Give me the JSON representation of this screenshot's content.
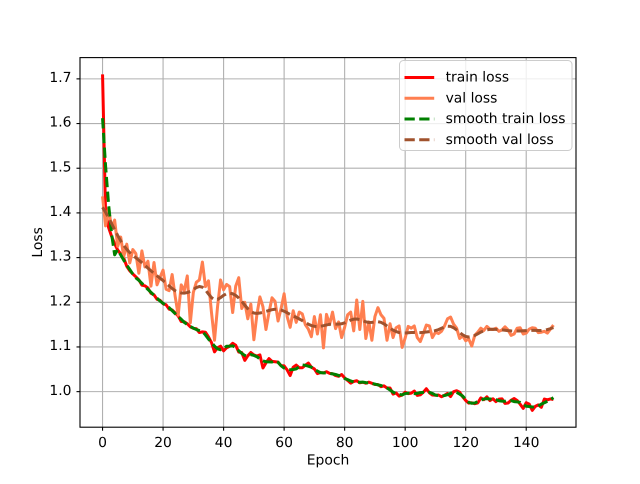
{
  "window": {
    "title": "",
    "background": "#ffffff"
  },
  "chart_data": {
    "type": "line",
    "title": "",
    "xlabel": "Epoch",
    "ylabel": "Loss",
    "x_start": 0,
    "n_points": 150,
    "xlim": [
      -7.45,
      156.45
    ],
    "ylim": [
      0.9204,
      1.7476
    ],
    "xticks": [
      0,
      20,
      40,
      60,
      80,
      100,
      120,
      140
    ],
    "xtick_labels": [
      "0",
      "20",
      "40",
      "60",
      "80",
      "100",
      "120",
      "140"
    ],
    "yticks": [
      1.0,
      1.1,
      1.2,
      1.3,
      1.4,
      1.5,
      1.6,
      1.7
    ],
    "ytick_labels": [
      "1.0",
      "1.1",
      "1.2",
      "1.3",
      "1.4",
      "1.5",
      "1.6",
      "1.7"
    ],
    "grid": true,
    "grid_color": "#b0b0b0",
    "legend_position": "upper right",
    "series": [
      {
        "name": "train loss",
        "color": "#ff0000",
        "style": "solid",
        "values": [
          1.71,
          1.4,
          1.3672,
          1.3475,
          1.3307,
          1.3172,
          1.3082,
          1.2988,
          1.2806,
          1.2703,
          1.2634,
          1.257,
          1.2503,
          1.2384,
          1.2369,
          1.2319,
          1.2202,
          1.2167,
          1.2067,
          1.2044,
          1.1968,
          1.1943,
          1.1845,
          1.1828,
          1.1764,
          1.1695,
          1.157,
          1.1565,
          1.1519,
          1.145,
          1.1417,
          1.1407,
          1.1323,
          1.1337,
          1.133,
          1.1227,
          1.1099,
          1.089,
          1.0984,
          1.1017,
          1.0913,
          1.0982,
          1.1016,
          1.1082,
          1.1038,
          1.0887,
          1.0874,
          1.07,
          1.0802,
          1.0876,
          1.0821,
          1.0796,
          1.0822,
          1.053,
          1.0645,
          1.0739,
          1.0678,
          1.0669,
          1.066,
          1.0581,
          1.0576,
          1.0487,
          1.036,
          1.0547,
          1.0594,
          1.0535,
          1.0535,
          1.0592,
          1.064,
          1.0548,
          1.0508,
          1.0404,
          1.0427,
          1.042,
          1.0445,
          1.0409,
          1.0401,
          1.036,
          1.0343,
          1.0383,
          1.0308,
          1.0251,
          1.019,
          1.0227,
          1.0244,
          1.0199,
          1.021,
          1.0188,
          1.0213,
          1.0188,
          1.0159,
          1.0159,
          1.011,
          1.0129,
          1.008,
          1.0081,
          0.9946,
          0.997,
          0.9899,
          0.9923,
          0.9987,
          0.9955,
          0.9965,
          1.0013,
          0.9917,
          0.9929,
          0.9986,
          1.0065,
          0.9975,
          0.9924,
          0.9919,
          0.9925,
          0.9886,
          0.9918,
          0.9961,
          0.989,
          1.0,
          1.002,
          0.9987,
          0.9885,
          0.9803,
          0.9743,
          0.975,
          0.973,
          0.9748,
          0.986,
          0.982,
          0.9884,
          0.9801,
          0.9841,
          0.9776,
          0.9832,
          0.9839,
          0.9737,
          0.9745,
          0.9806,
          0.9846,
          0.9802,
          0.9718,
          0.9624,
          0.9753,
          0.9721,
          0.958,
          0.967,
          0.9704,
          0.965,
          0.9835,
          0.9816,
          0.9837,
          0.9823
        ]
      },
      {
        "name": "val loss",
        "color": "#ff7f50",
        "style": "solid",
        "values": [
          1.437,
          1.371,
          1.411,
          1.365,
          1.384,
          1.325,
          1.346,
          1.302,
          1.33,
          1.288,
          1.318,
          1.309,
          1.265,
          1.315,
          1.279,
          1.292,
          1.236,
          1.289,
          1.239,
          1.256,
          1.272,
          1.229,
          1.226,
          1.262,
          1.213,
          1.171,
          1.239,
          1.226,
          1.259,
          1.154,
          1.222,
          1.245,
          1.25,
          1.29,
          1.235,
          1.248,
          1.177,
          1.115,
          1.19,
          1.25,
          1.228,
          1.24,
          1.235,
          1.177,
          1.236,
          1.255,
          1.186,
          1.2,
          1.163,
          1.196,
          1.116,
          1.172,
          1.212,
          1.19,
          1.139,
          1.177,
          1.21,
          1.202,
          1.158,
          1.186,
          1.219,
          1.168,
          1.144,
          1.181,
          1.155,
          1.178,
          1.174,
          1.15,
          1.14,
          1.123,
          1.168,
          1.129,
          1.172,
          1.098,
          1.173,
          1.15,
          1.178,
          1.141,
          1.156,
          1.121,
          1.144,
          1.172,
          1.178,
          1.136,
          1.205,
          1.139,
          1.202,
          1.119,
          1.156,
          1.115,
          1.168,
          1.188,
          1.172,
          1.164,
          1.115,
          1.152,
          1.121,
          1.143,
          1.147,
          1.099,
          1.12,
          1.146,
          1.142,
          1.147,
          1.121,
          1.112,
          1.13,
          1.149,
          1.147,
          1.121,
          1.133,
          1.13,
          1.135,
          1.147,
          1.163,
          1.167,
          1.151,
          1.142,
          1.119,
          1.125,
          1.114,
          1.118,
          1.102,
          1.126,
          1.133,
          1.142,
          1.137,
          1.146,
          1.14,
          1.139,
          1.142,
          1.135,
          1.138,
          1.145,
          1.138,
          1.126,
          1.129,
          1.142,
          1.143,
          1.129,
          1.131,
          1.14,
          1.143,
          1.142,
          1.132,
          1.133,
          1.135,
          1.131,
          1.14,
          1.149
        ]
      },
      {
        "name": "smooth train loss",
        "color": "#008000",
        "style": "dashed",
        "values": [
          1.612,
          1.5054,
          1.4188,
          1.3524,
          1.3062,
          1.3178,
          1.306,
          1.2942,
          1.2832,
          1.2734,
          1.2632,
          1.2547,
          1.2491,
          1.2424,
          1.2359,
          1.2287,
          1.2222,
          1.2158,
          1.2092,
          1.2028,
          1.1977,
          1.1922,
          1.1879,
          1.1811,
          1.1746,
          1.168,
          1.1619,
          1.1551,
          1.1504,
          1.1458,
          1.1422,
          1.1389,
          1.1367,
          1.1346,
          1.1269,
          1.1177,
          1.1106,
          1.1018,
          1.0957,
          1.0937,
          1.0963,
          1.1017,
          1.1018,
          1.1024,
          1.099,
          1.0916,
          1.0856,
          1.081,
          1.0792,
          1.083,
          1.0811,
          1.0782,
          1.0731,
          1.0688,
          1.0669,
          1.0665,
          1.0663,
          1.0688,
          1.0655,
          1.0578,
          1.0527,
          1.05,
          1.049,
          1.0496,
          1.051,
          1.0559,
          1.0596,
          1.0589,
          1.057,
          1.0548,
          1.0505,
          1.046,
          1.0426,
          1.0421,
          1.0416,
          1.0409,
          1.0397,
          1.0384,
          1.0363,
          1.0331,
          1.0294,
          1.0268,
          1.0239,
          1.0215,
          1.0209,
          1.0211,
          1.0214,
          1.0201,
          1.0194,
          1.0183,
          1.0169,
          1.0151,
          1.0138,
          1.011,
          1.0082,
          1.0037,
          0.9989,
          0.9953,
          0.9936,
          0.9927,
          0.9957,
          0.9964,
          0.9969,
          0.9955,
          0.9961,
          0.9979,
          0.9983,
          0.9978,
          0.9984,
          0.996,
          0.9924,
          0.9909,
          0.9905,
          0.9912,
          0.9931,
          0.9962,
          0.9987,
          0.9981,
          0.9945,
          0.9901,
          0.9826,
          0.976,
          0.9739,
          0.9745,
          0.9781,
          0.9809,
          0.9835,
          0.9842,
          0.9836,
          0.9829,
          0.9822,
          0.9796,
          0.9788,
          0.9784,
          0.9799,
          0.98,
          0.9777,
          0.977,
          0.9759,
          0.9712,
          0.9674,
          0.9668,
          0.9655,
          0.9668,
          0.9676,
          0.9722,
          0.9751,
          0.9785,
          0.9823,
          0.9865
        ]
      },
      {
        "name": "smooth val loss",
        "color": "#a0522d",
        "style": "dashed",
        "values": [
          1.4125,
          1.4015,
          1.3891,
          1.376,
          1.3626,
          1.3496,
          1.3376,
          1.3272,
          1.3184,
          1.3112,
          1.3051,
          1.2996,
          1.2942,
          1.2886,
          1.2827,
          1.2765,
          1.2704,
          1.2645,
          1.2591,
          1.2539,
          1.2485,
          1.2426,
          1.2366,
          1.2308,
          1.2259,
          1.2225,
          1.2208,
          1.2205,
          1.2217,
          1.2244,
          1.2286,
          1.2329,
          1.2353,
          1.2337,
          1.2276,
          1.2187,
          1.2104,
          1.2058,
          1.2063,
          1.2104,
          1.2155,
          1.2192,
          1.2203,
          1.219,
          1.2154,
          1.2097,
          1.2021,
          1.1936,
          1.1855,
          1.1794,
          1.1759,
          1.1751,
          1.1759,
          1.1776,
          1.1796,
          1.1816,
          1.1834,
          1.1844,
          1.1842,
          1.1827,
          1.18,
          1.1765,
          1.1728,
          1.1694,
          1.1662,
          1.1628,
          1.159,
          1.1548,
          1.1509,
          1.1479,
          1.1462,
          1.1457,
          1.1463,
          1.1476,
          1.1493,
          1.1507,
          1.1513,
          1.1512,
          1.1511,
          1.1519,
          1.154,
          1.1571,
          1.1602,
          1.1622,
          1.1626,
          1.1613,
          1.1588,
          1.1562,
          1.1548,
          1.155,
          1.156,
          1.1564,
          1.1551,
          1.1516,
          1.1469,
          1.142,
          1.1377,
          1.1344,
          1.1322,
          1.1313,
          1.1313,
          1.1318,
          1.1323,
          1.1324,
          1.1322,
          1.1322,
          1.1327,
          1.1334,
          1.1343,
          1.1352,
          1.1366,
          1.1388,
          1.1418,
          1.1448,
          1.1465,
          1.146,
          1.1431,
          1.1381,
          1.1324,
          1.1272,
          1.1236,
          1.1222,
          1.1231,
          1.1258,
          1.1295,
          1.1332,
          1.1362,
          1.1383,
          1.1393,
          1.1395,
          1.1393,
          1.1388,
          1.1382,
          1.1373,
          1.1365,
          1.1359,
          1.1356,
          1.1356,
          1.1358,
          1.1362,
          1.1366,
          1.1369,
          1.1371,
          1.137,
          1.1368,
          1.1368,
          1.1375,
          1.139,
          1.141,
          1.1433
        ]
      }
    ]
  }
}
